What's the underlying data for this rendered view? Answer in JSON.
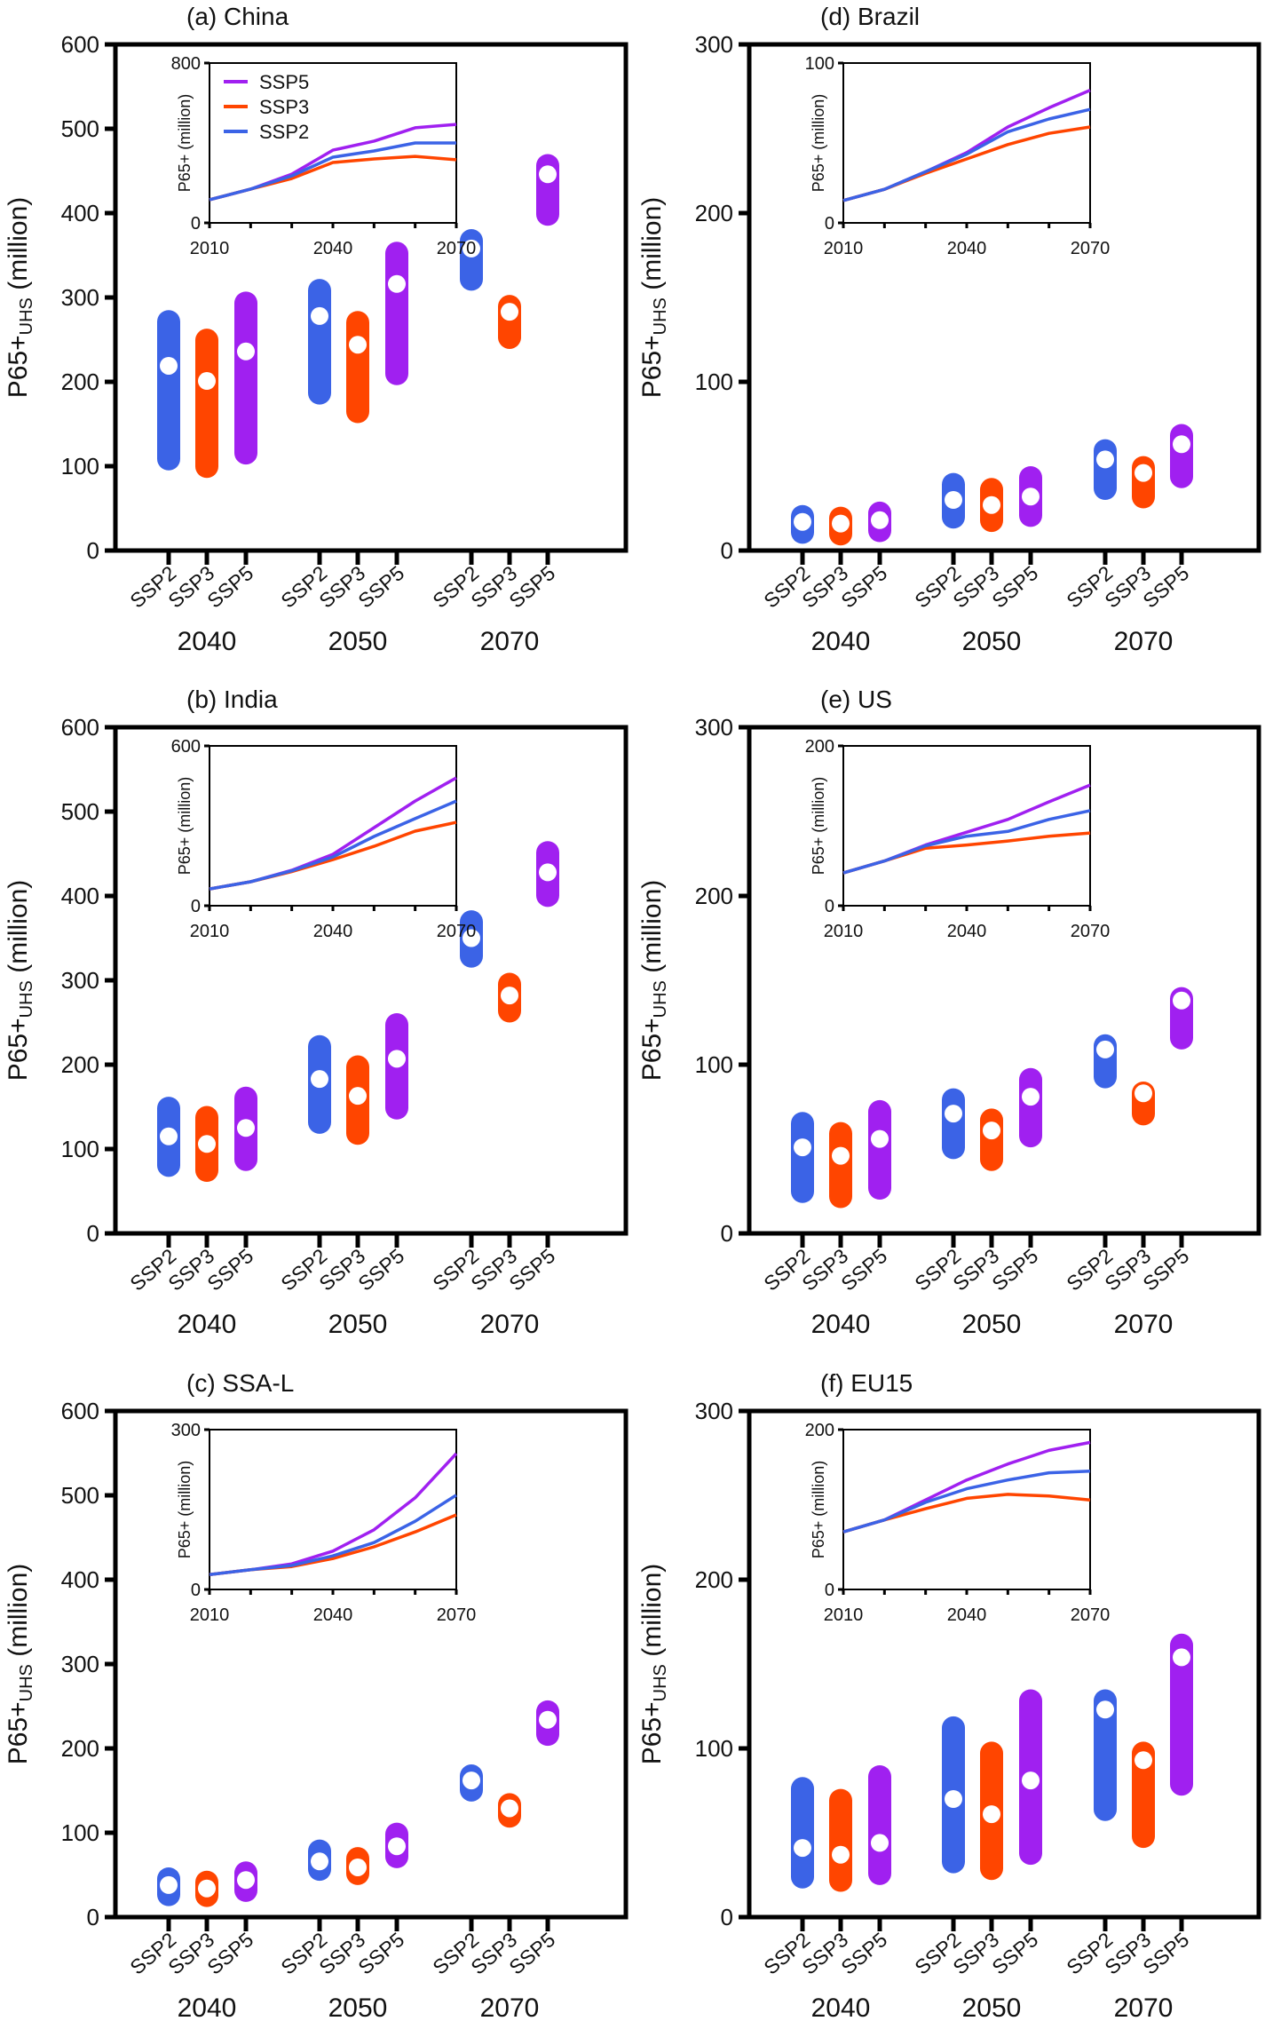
{
  "figure": {
    "colors": {
      "SSP2": "#3b63e6",
      "SSP3": "#ff4500",
      "SSP5": "#a020f0"
    },
    "legend_order": [
      "SSP5",
      "SSP3",
      "SSP2"
    ]
  },
  "chart_data": [
    {
      "id": "a",
      "title": "(a) China",
      "type": "range-bar",
      "ylabel_main": "P65+",
      "ylabel_sub": "UHS",
      "ylabel_unit": "(million)",
      "ylim": [
        0,
        600
      ],
      "yticks": [
        0,
        100,
        200,
        300,
        400,
        500,
        600
      ],
      "groups": [
        "2040",
        "2050",
        "2070"
      ],
      "scenarios": [
        "SSP2",
        "SSP3",
        "SSP5"
      ],
      "bars": {
        "2040": {
          "SSP2": [
            95,
            219,
            285
          ],
          "SSP3": [
            86,
            201,
            263
          ],
          "SSP5": [
            102,
            236,
            307
          ]
        },
        "2050": {
          "SSP2": [
            173,
            278,
            322
          ],
          "SSP3": [
            151,
            244,
            284
          ],
          "SSP5": [
            196,
            316,
            366
          ]
        },
        "2070": {
          "SSP2": [
            308,
            358,
            381
          ],
          "SSP3": [
            239,
            283,
            303
          ],
          "SSP5": [
            385,
            446,
            470
          ]
        }
      },
      "inset": {
        "type": "line",
        "ylabel": "P65+ (million)",
        "ylim": [
          0,
          800
        ],
        "yticks": [
          0,
          800
        ],
        "xlim": [
          2010,
          2070
        ],
        "xticklabels": [
          "2010",
          "2040",
          "2070"
        ],
        "x": [
          2010,
          2020,
          2030,
          2040,
          2050,
          2060,
          2070
        ],
        "legend": true,
        "series": [
          {
            "name": "SSP5",
            "values": [
              116,
              169,
              244,
              364,
              409,
              476,
              493
            ]
          },
          {
            "name": "SSP3",
            "values": [
              116,
              169,
              222,
              302,
              320,
              333,
              316
            ]
          },
          {
            "name": "SSP2",
            "values": [
              116,
              169,
              235,
              329,
              360,
              400,
              400
            ]
          }
        ]
      }
    },
    {
      "id": "b",
      "title": "(b) India",
      "type": "range-bar",
      "ylabel_main": "P65+",
      "ylabel_sub": "UHS",
      "ylabel_unit": "(million)",
      "ylim": [
        0,
        600
      ],
      "yticks": [
        0,
        100,
        200,
        300,
        400,
        500,
        600
      ],
      "groups": [
        "2040",
        "2050",
        "2070"
      ],
      "scenarios": [
        "SSP2",
        "SSP3",
        "SSP5"
      ],
      "bars": {
        "2040": {
          "SSP2": [
            67,
            115,
            162
          ],
          "SSP3": [
            61,
            106,
            151
          ],
          "SSP5": [
            74,
            125,
            174
          ]
        },
        "2050": {
          "SSP2": [
            118,
            183,
            235
          ],
          "SSP3": [
            105,
            163,
            211
          ],
          "SSP5": [
            135,
            207,
            261
          ]
        },
        "2070": {
          "SSP2": [
            315,
            350,
            383
          ],
          "SSP3": [
            250,
            282,
            309
          ],
          "SSP5": [
            387,
            428,
            465
          ]
        }
      },
      "inset": {
        "type": "line",
        "ylabel": "P65+ (million)",
        "ylim": [
          0,
          600
        ],
        "yticks": [
          0,
          600
        ],
        "xlim": [
          2010,
          2070
        ],
        "xticklabels": [
          "2010",
          "2040",
          "2070"
        ],
        "x": [
          2010,
          2020,
          2030,
          2040,
          2050,
          2060,
          2070
        ],
        "legend": false,
        "series": [
          {
            "name": "SSP5",
            "values": [
              63,
              90,
              133,
              193,
              293,
              393,
              480
            ]
          },
          {
            "name": "SSP3",
            "values": [
              63,
              90,
              128,
              173,
              223,
              280,
              313
            ]
          },
          {
            "name": "SSP2",
            "values": [
              63,
              90,
              131,
              183,
              260,
              327,
              393
            ]
          }
        ]
      }
    },
    {
      "id": "c",
      "title": "(c) SSA-L",
      "type": "range-bar",
      "ylabel_main": "P65+",
      "ylabel_sub": "UHS",
      "ylabel_unit": "(million)",
      "ylim": [
        0,
        600
      ],
      "yticks": [
        0,
        100,
        200,
        300,
        400,
        500,
        600
      ],
      "groups": [
        "2040",
        "2050",
        "2070"
      ],
      "scenarios": [
        "SSP2",
        "SSP3",
        "SSP5"
      ],
      "bars": {
        "2040": {
          "SSP2": [
            13,
            38,
            59
          ],
          "SSP3": [
            12,
            34,
            55
          ],
          "SSP5": [
            18,
            44,
            66
          ]
        },
        "2050": {
          "SSP2": [
            43,
            66,
            92
          ],
          "SSP3": [
            38,
            59,
            83
          ],
          "SSP5": [
            58,
            84,
            112
          ]
        },
        "2070": {
          "SSP2": [
            137,
            162,
            181
          ],
          "SSP3": [
            106,
            129,
            147
          ],
          "SSP5": [
            203,
            234,
            257
          ]
        }
      },
      "inset": {
        "type": "line",
        "ylabel": "P65+ (million)",
        "ylim": [
          0,
          300
        ],
        "yticks": [
          0,
          300
        ],
        "xlim": [
          2010,
          2070
        ],
        "xticklabels": [
          "2010",
          "2040",
          "2070"
        ],
        "x": [
          2010,
          2020,
          2030,
          2040,
          2050,
          2060,
          2070
        ],
        "legend": false,
        "series": [
          {
            "name": "SSP5",
            "values": [
              28,
              37,
              48,
              72,
              112,
              172,
              255
            ]
          },
          {
            "name": "SSP3",
            "values": [
              28,
              37,
              43,
              58,
              80,
              108,
              140
            ]
          },
          {
            "name": "SSP2",
            "values": [
              28,
              37,
              45,
              63,
              88,
              128,
              177
            ]
          }
        ]
      }
    },
    {
      "id": "d",
      "title": "(d) Brazil",
      "type": "range-bar",
      "ylabel_main": "P65+",
      "ylabel_sub": "UHS",
      "ylabel_unit": "(million)",
      "ylim": [
        0,
        300
      ],
      "yticks": [
        0,
        100,
        200,
        300
      ],
      "groups": [
        "2040",
        "2050",
        "2070"
      ],
      "scenarios": [
        "SSP2",
        "SSP3",
        "SSP5"
      ],
      "bars": {
        "2040": {
          "SSP2": [
            4,
            17,
            27
          ],
          "SSP3": [
            3,
            16,
            26
          ],
          "SSP5": [
            5,
            18,
            29
          ]
        },
        "2050": {
          "SSP2": [
            13,
            30,
            46
          ],
          "SSP3": [
            11,
            27,
            43
          ],
          "SSP5": [
            14,
            32,
            50
          ]
        },
        "2070": {
          "SSP2": [
            30,
            54,
            66
          ],
          "SSP3": [
            25,
            46,
            56
          ],
          "SSP5": [
            37,
            63,
            75
          ]
        }
      },
      "inset": {
        "type": "line",
        "ylabel": "P65+ (million)",
        "ylim": [
          0,
          100
        ],
        "yticks": [
          0,
          100
        ],
        "xlim": [
          2010,
          2070
        ],
        "xticklabels": [
          "2010",
          "2040",
          "2070"
        ],
        "x": [
          2010,
          2020,
          2030,
          2040,
          2050,
          2060,
          2070
        ],
        "legend": false,
        "series": [
          {
            "name": "SSP5",
            "values": [
              14,
              21,
              32,
              44,
              60,
              72,
              83
            ]
          },
          {
            "name": "SSP3",
            "values": [
              14,
              21,
              31,
              40,
              49,
              56,
              60
            ]
          },
          {
            "name": "SSP2",
            "values": [
              14,
              21,
              32,
              43,
              57,
              65,
              71
            ]
          }
        ]
      }
    },
    {
      "id": "e",
      "title": "(e) US",
      "type": "range-bar",
      "ylabel_main": "P65+",
      "ylabel_sub": "UHS",
      "ylabel_unit": "(million)",
      "ylim": [
        0,
        300
      ],
      "yticks": [
        0,
        100,
        200,
        300
      ],
      "groups": [
        "2040",
        "2050",
        "2070"
      ],
      "scenarios": [
        "SSP2",
        "SSP3",
        "SSP5"
      ],
      "bars": {
        "2040": {
          "SSP2": [
            18,
            51,
            72
          ],
          "SSP3": [
            15,
            46,
            66
          ],
          "SSP5": [
            20,
            56,
            79
          ]
        },
        "2050": {
          "SSP2": [
            44,
            71,
            86
          ],
          "SSP3": [
            37,
            61,
            74
          ],
          "SSP5": [
            51,
            81,
            98
          ]
        },
        "2070": {
          "SSP2": [
            86,
            109,
            118
          ],
          "SSP3": [
            64,
            83,
            90
          ],
          "SSP5": [
            109,
            138,
            146
          ]
        }
      },
      "inset": {
        "type": "line",
        "ylabel": "P65+ (million)",
        "ylim": [
          0,
          200
        ],
        "yticks": [
          0,
          200
        ],
        "xlim": [
          2010,
          2070
        ],
        "xticklabels": [
          "2010",
          "2040",
          "2070"
        ],
        "x": [
          2010,
          2020,
          2030,
          2040,
          2050,
          2060,
          2070
        ],
        "legend": false,
        "series": [
          {
            "name": "SSP5",
            "values": [
              41,
              56,
              76,
              92,
              108,
              130,
              151
            ]
          },
          {
            "name": "SSP3",
            "values": [
              41,
              56,
              72,
              76,
              81,
              87,
              91
            ]
          },
          {
            "name": "SSP2",
            "values": [
              41,
              56,
              75,
              87,
              93,
              108,
              119
            ]
          }
        ]
      }
    },
    {
      "id": "f",
      "title": "(f) EU15",
      "type": "range-bar",
      "ylabel_main": "P65+",
      "ylabel_sub": "UHS",
      "ylabel_unit": "(million)",
      "ylim": [
        0,
        300
      ],
      "yticks": [
        0,
        100,
        200,
        300
      ],
      "groups": [
        "2040",
        "2050",
        "2070"
      ],
      "scenarios": [
        "SSP2",
        "SSP3",
        "SSP5"
      ],
      "bars": {
        "2040": {
          "SSP2": [
            17,
            41,
            83
          ],
          "SSP3": [
            15,
            37,
            76
          ],
          "SSP5": [
            19,
            44,
            90
          ]
        },
        "2050": {
          "SSP2": [
            26,
            70,
            119
          ],
          "SSP3": [
            22,
            61,
            104
          ],
          "SSP5": [
            31,
            81,
            135
          ]
        },
        "2070": {
          "SSP2": [
            57,
            123,
            135
          ],
          "SSP3": [
            41,
            93,
            104
          ],
          "SSP5": [
            72,
            154,
            168
          ]
        }
      },
      "inset": {
        "type": "line",
        "ylabel": "P65+ (million)",
        "ylim": [
          0,
          200
        ],
        "yticks": [
          0,
          200
        ],
        "xlim": [
          2010,
          2070
        ],
        "xticklabels": [
          "2010",
          "2040",
          "2070"
        ],
        "x": [
          2010,
          2020,
          2030,
          2040,
          2050,
          2060,
          2070
        ],
        "legend": false,
        "series": [
          {
            "name": "SSP5",
            "values": [
              72,
              87,
              112,
              137,
              157,
              174,
              184
            ]
          },
          {
            "name": "SSP3",
            "values": [
              72,
              87,
              101,
              114,
              119,
              117,
              112
            ]
          },
          {
            "name": "SSP2",
            "values": [
              72,
              87,
              109,
              126,
              137,
              146,
              148
            ]
          }
        ]
      }
    }
  ]
}
